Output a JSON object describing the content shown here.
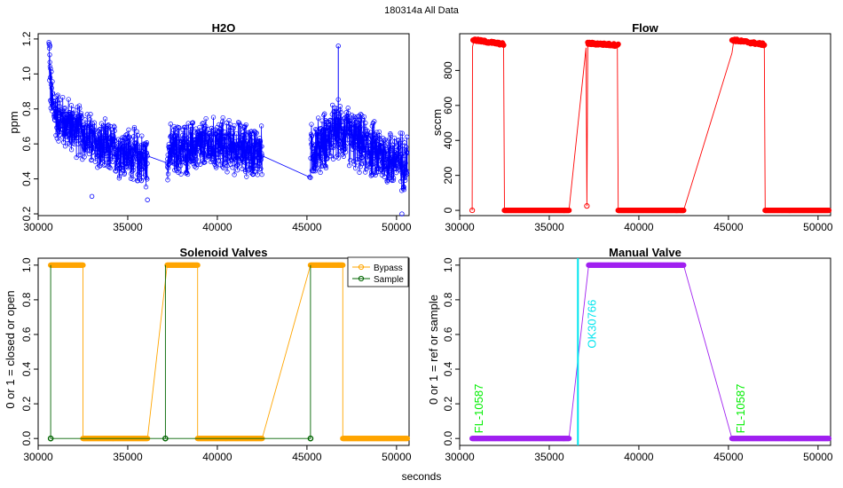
{
  "figure": {
    "title": "180314a   All Data",
    "xlabel": "seconds"
  },
  "chart_data": [
    {
      "id": "h2o",
      "type": "scatter",
      "title": "H2O",
      "xlabel": "",
      "ylabel": "ppm",
      "xlim": [
        30000,
        50700
      ],
      "ylim": [
        0.19,
        1.23
      ],
      "xticks": [
        30000,
        35000,
        40000,
        45000,
        50000
      ],
      "yticks": [
        0.2,
        0.4,
        0.6,
        0.8,
        1.0,
        1.2
      ],
      "ytick_labels": [
        "0.2",
        "0.4",
        "0.6",
        "0.8",
        "1.0",
        "1.2"
      ],
      "series": [
        {
          "name": "H2O",
          "color": "#0000ff",
          "marker": "open-circle",
          "connect": true,
          "segments": [
            {
              "x_start": 30600,
              "x_end": 36100,
              "baseline": [
                [
                  30600,
                  1.15
                ],
                [
                  30700,
                  0.9
                ],
                [
                  30900,
                  0.78
                ],
                [
                  31500,
                  0.72
                ],
                [
                  32500,
                  0.66
                ],
                [
                  33500,
                  0.58
                ],
                [
                  35000,
                  0.55
                ],
                [
                  36100,
                  0.5
                ]
              ],
              "spread": 0.22,
              "count": 520
            },
            {
              "x_start": 37200,
              "x_end": 42500,
              "baseline": [
                [
                  37200,
                  0.55
                ],
                [
                  38500,
                  0.58
                ],
                [
                  40000,
                  0.6
                ],
                [
                  41500,
                  0.57
                ],
                [
                  42500,
                  0.55
                ]
              ],
              "spread": 0.22,
              "count": 500
            },
            {
              "x_start": 45200,
              "x_end": 50600,
              "baseline": [
                [
                  45200,
                  0.55
                ],
                [
                  46000,
                  0.62
                ],
                [
                  46800,
                  0.68
                ],
                [
                  48000,
                  0.6
                ],
                [
                  49500,
                  0.52
                ],
                [
                  50600,
                  0.5
                ]
              ],
              "spread": 0.24,
              "count": 520
            }
          ],
          "highlights": [
            [
              30620,
              1.17
            ],
            [
              30660,
              1.16
            ],
            [
              46750,
              1.16
            ],
            [
              36100,
              0.28
            ],
            [
              50300,
              0.2
            ],
            [
              33000,
              0.3
            ],
            [
              45150,
              0.41
            ]
          ]
        }
      ]
    },
    {
      "id": "flow",
      "type": "scatter",
      "title": "Flow",
      "xlabel": "",
      "ylabel": "sccm",
      "xlim": [
        30000,
        50700
      ],
      "ylim": [
        -30,
        1010
      ],
      "xticks": [
        30000,
        35000,
        40000,
        45000,
        50000
      ],
      "yticks": [
        0,
        200,
        400,
        600,
        800
      ],
      "ytick_labels": [
        "0",
        "200",
        "400",
        "600",
        "800"
      ],
      "series": [
        {
          "name": "Flow",
          "color": "#ff0000",
          "marker": "filled-circle",
          "connect": true,
          "path": [
            [
              30700,
              0
            ],
            [
              30720,
              935
            ],
            [
              30800,
              970
            ],
            [
              31500,
              960
            ],
            [
              32450,
              950
            ],
            [
              32500,
              0
            ],
            [
              36100,
              0
            ],
            [
              37050,
              930
            ],
            [
              37100,
              25
            ],
            [
              37150,
              955
            ],
            [
              38000,
              945
            ],
            [
              38800,
              945
            ],
            [
              38850,
              0
            ],
            [
              42500,
              0
            ],
            [
              45200,
              900
            ],
            [
              45300,
              975
            ],
            [
              46000,
              955
            ],
            [
              47000,
              950
            ],
            [
              47050,
              0
            ],
            [
              50600,
              0
            ]
          ],
          "filled_runs": [
            {
              "x_start": 30750,
              "x_end": 32450,
              "y_from": 975,
              "y_to": 950
            },
            {
              "x_start": 32500,
              "x_end": 36100,
              "y_from": 0,
              "y_to": 0
            },
            {
              "x_start": 37150,
              "x_end": 38850,
              "y_from": 955,
              "y_to": 945
            },
            {
              "x_start": 38850,
              "x_end": 42500,
              "y_from": 0,
              "y_to": 0
            },
            {
              "x_start": 45200,
              "x_end": 47000,
              "y_from": 975,
              "y_to": 948
            },
            {
              "x_start": 47050,
              "x_end": 50600,
              "y_from": 0,
              "y_to": 0
            }
          ],
          "open_points": [
            [
              30700,
              0
            ],
            [
              37100,
              25
            ]
          ]
        }
      ]
    },
    {
      "id": "solenoid",
      "type": "line",
      "title": "Solenoid Valves",
      "xlabel": "",
      "ylabel": "0 or 1 = closed or open",
      "xlim": [
        30000,
        50700
      ],
      "ylim": [
        -0.04,
        1.04
      ],
      "xticks": [
        30000,
        35000,
        40000,
        45000,
        50000
      ],
      "yticks": [
        0.0,
        0.2,
        0.4,
        0.6,
        0.8,
        1.0
      ],
      "ytick_labels": [
        "0.0",
        "0.2",
        "0.4",
        "0.6",
        "0.8",
        "1.0"
      ],
      "legend": {
        "position": "top-right",
        "entries": [
          {
            "label": "Bypass",
            "color": "#ffa500"
          },
          {
            "label": "Sample",
            "color": "#006400"
          }
        ]
      },
      "series": [
        {
          "name": "Bypass",
          "color": "#ffa500",
          "path": [
            [
              30700,
              1
            ],
            [
              32500,
              1
            ],
            [
              32500,
              0
            ],
            [
              36100,
              0
            ],
            [
              37200,
              1
            ],
            [
              38900,
              1
            ],
            [
              38900,
              0
            ],
            [
              42500,
              0
            ],
            [
              45200,
              1
            ],
            [
              47000,
              1
            ],
            [
              47000,
              0
            ],
            [
              50600,
              0
            ]
          ],
          "filled_runs": [
            {
              "x_start": 30700,
              "x_end": 32500,
              "y": 1
            },
            {
              "x_start": 32500,
              "x_end": 36100,
              "y": 0
            },
            {
              "x_start": 37200,
              "x_end": 38900,
              "y": 1
            },
            {
              "x_start": 38900,
              "x_end": 42500,
              "y": 0
            },
            {
              "x_start": 45200,
              "x_end": 47000,
              "y": 1
            },
            {
              "x_start": 47000,
              "x_end": 50600,
              "y": 0
            }
          ]
        },
        {
          "name": "Sample",
          "color": "#006400",
          "path": [
            [
              30700,
              0
            ],
            [
              30700,
              1
            ],
            [
              30700,
              0
            ],
            [
              36100,
              0
            ],
            [
              37100,
              0
            ],
            [
              37100,
              1
            ],
            [
              37100,
              0
            ],
            [
              42500,
              0
            ],
            [
              45200,
              0
            ],
            [
              45200,
              1
            ],
            [
              45200,
              0
            ]
          ],
          "markers": [
            [
              30700,
              0
            ],
            [
              37100,
              0
            ],
            [
              45200,
              0
            ]
          ]
        }
      ]
    },
    {
      "id": "manual",
      "type": "line",
      "title": "Manual Valve",
      "xlabel": "",
      "ylabel": "0 or 1 = ref or sample",
      "xlim": [
        30000,
        50700
      ],
      "ylim": [
        -0.04,
        1.04
      ],
      "xticks": [
        30000,
        35000,
        40000,
        45000,
        50000
      ],
      "yticks": [
        0.0,
        0.2,
        0.4,
        0.6,
        0.8,
        1.0
      ],
      "ytick_labels": [
        "0.0",
        "0.2",
        "0.4",
        "0.6",
        "0.8",
        "1.0"
      ],
      "series": [
        {
          "name": "Manual",
          "color": "#a020f0",
          "path": [
            [
              30700,
              0
            ],
            [
              36100,
              0
            ],
            [
              37200,
              1
            ],
            [
              42500,
              1
            ],
            [
              45200,
              0
            ],
            [
              50600,
              0
            ]
          ],
          "filled_runs": [
            {
              "x_start": 30700,
              "x_end": 36100,
              "y": 0
            },
            {
              "x_start": 37200,
              "x_end": 42500,
              "y": 1
            },
            {
              "x_start": 45200,
              "x_end": 50600,
              "y": 0
            }
          ]
        }
      ],
      "vline": {
        "x": 36600,
        "color": "#00e5ee"
      },
      "annotations": [
        {
          "text": "FL-10587",
          "x": 31300,
          "y": 0.03,
          "color": "#00ee00",
          "rotate": -90
        },
        {
          "text": "OK30766",
          "x": 37600,
          "y": 0.52,
          "color": "#00e5ee",
          "rotate": -90
        },
        {
          "text": "FL-10587",
          "x": 45900,
          "y": 0.03,
          "color": "#00ee00",
          "rotate": -90
        }
      ]
    }
  ]
}
